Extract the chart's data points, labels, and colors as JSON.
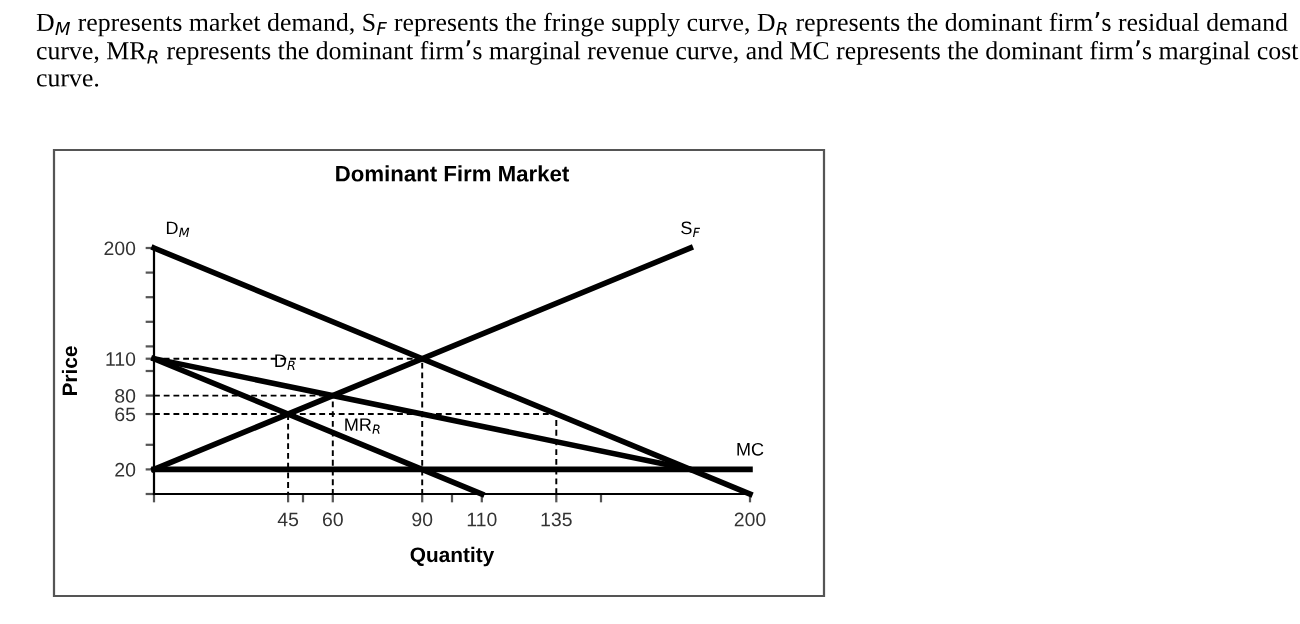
{
  "chart_data": {
    "type": "line",
    "title": "Dominant Firm Market",
    "xlabel": "Quantity",
    "ylabel": "Price",
    "annotations": [
      "D$_{M}$ represents market demand, S$_{F}$ represents the fringe supply curve, D$_{R}$ represents the dominant firm’s residual demand curve, MR$_{R}$ represents the dominant firm’s marginal revenue curve, and MC represents the dominant firm’s marginal cost curve.",
      {
        "text": "D$_{M}$",
        "x": 8,
        "y": 200
      },
      {
        "text": "S$_{F}$",
        "x": 180,
        "y": 200
      },
      {
        "text": "D$_{R}$",
        "x": 44,
        "y": 92
      },
      {
        "text": "MR$_{R}$",
        "x": 70,
        "y": 40
      },
      {
        "text": "MC",
        "x": 200,
        "y": 20
      }
    ],
    "xlim": [
      0,
      200
    ],
    "ylim": [
      0,
      200
    ],
    "xticks": [
      {
        "value": 0,
        "label": null
      },
      45,
      {
        "value": 50,
        "label": null
      },
      60,
      90,
      {
        "value": 100,
        "label": null
      },
      110,
      135,
      {
        "value": 150,
        "label": null
      },
      200
    ],
    "yticks": [
      {
        "value": 0,
        "label": null
      },
      20,
      {
        "value": 40,
        "label": null
      },
      65,
      80,
      {
        "value": 100,
        "label": null
      },
      110,
      {
        "value": 120,
        "label": null
      },
      {
        "value": 140,
        "label": null
      },
      {
        "value": 160,
        "label": null
      },
      {
        "value": 180,
        "label": null
      },
      200
    ],
    "grid": false,
    "legend": false,
    "marker": "none",
    "series": [
      {
        "color": "#000000",
        "x": [
          0,
          200
        ],
        "values": [
          200,
          0
        ]
      },
      {
        "color": "#000000",
        "x": [
          0,
          180
        ],
        "values": [
          20,
          200
        ]
      },
      {
        "color": "#000000",
        "x": [
          0,
          180
        ],
        "values": [
          110,
          20
        ]
      },
      {
        "color": "#000000",
        "x": [
          0,
          110
        ],
        "values": [
          110,
          0
        ]
      },
      {
        "color": "#000000",
        "x": [
          0,
          200
        ],
        "values": [
          20,
          20
        ]
      },
      {
        "color": "#000000",
        "x": [
          0,
          90,
          90
        ],
        "values": [
          110,
          110,
          0
        ],
        "line_style": "dashed"
      },
      {
        "color": "#000000",
        "x": [
          0,
          60,
          60
        ],
        "values": [
          80,
          80,
          0
        ],
        "line_style": "dashed"
      },
      {
        "color": "#000000",
        "x": [
          0,
          135,
          135
        ],
        "values": [
          65,
          65,
          0
        ],
        "line_style": "dashed"
      },
      {
        "color": "#000000",
        "x": [
          45,
          45
        ],
        "values": [
          65,
          0
        ],
        "line_style": "dashed"
      }
    ]
  }
}
